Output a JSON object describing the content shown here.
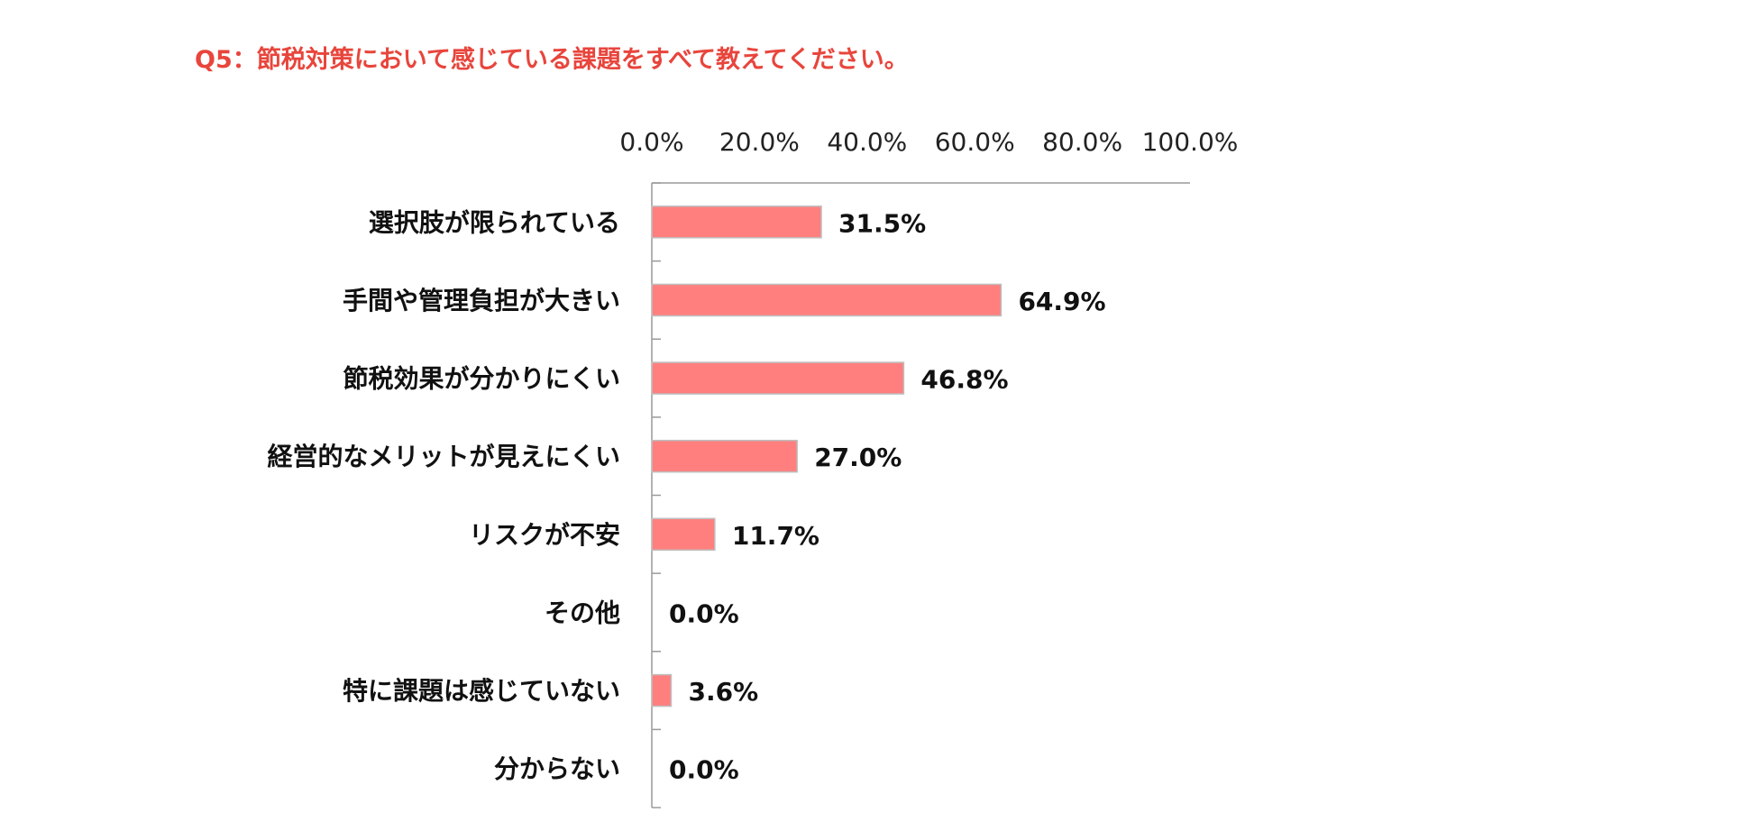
{
  "chart_data": {
    "type": "bar",
    "orientation": "horizontal",
    "title": "Q5：節税対策において感じている課題をすべて教えてください。",
    "categories": [
      "選択肢が限られている",
      "手間や管理負担が大きい",
      "節税効果が分かりにくい",
      "経営的なメリットが見えにくい",
      "リスクが不安",
      "その他",
      "特に課題は感じていない",
      "分からない"
    ],
    "values": [
      31.5,
      64.9,
      46.8,
      27.0,
      11.7,
      0.0,
      3.6,
      0.0
    ],
    "value_labels": [
      "31.5%",
      "64.9%",
      "46.8%",
      "27.0%",
      "11.7%",
      "0.0%",
      "3.6%",
      "0.0%"
    ],
    "x_ticks": [
      "0.0%",
      "20.0%",
      "40.0%",
      "60.0%",
      "80.0%",
      "100.0%"
    ],
    "xlim": [
      0,
      100
    ],
    "x_axis_position": "top",
    "grid": false,
    "legend": "none",
    "colors": {
      "bar": "#ff7f7f",
      "bar_border": "#bfbfbf",
      "axis": "#9a9a9a",
      "title": "#e8453c"
    }
  }
}
